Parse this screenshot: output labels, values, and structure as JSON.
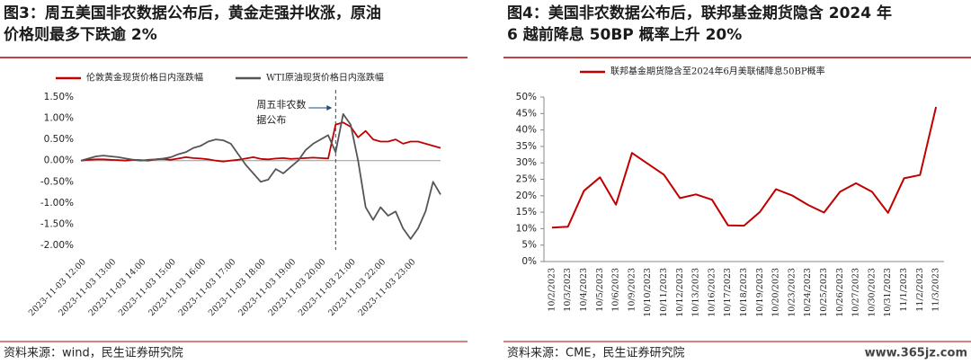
{
  "chart_data": [
    {
      "type": "line",
      "title": [
        "图3：周五美国非农数据公布后，黄金走强并收涨，原油",
        "价格则最多下跌逾 2%"
      ],
      "source": "资料来源：wind，民生证券研究院",
      "categories": [
        "2023-11-03 12:00",
        null,
        null,
        null,
        "2023-11-03 13:00",
        null,
        null,
        null,
        "2023-11-03 14:00",
        null,
        null,
        null,
        "2023-11-03 15:00",
        null,
        null,
        null,
        "2023-11-03 16:00",
        null,
        null,
        null,
        "2023-11-03 17:00",
        null,
        null,
        null,
        "2023-11-03 18:00",
        null,
        null,
        null,
        "2023-11-03 19:00",
        null,
        null,
        null,
        "2023-11-03 20:00",
        null,
        null,
        null,
        "2023-11-03 21:00",
        null,
        null,
        null,
        "2023-11-03 22:00",
        null,
        null,
        null,
        "2023-11-03 23:00",
        null,
        null,
        null,
        null
      ],
      "series": [
        {
          "name": "伦敦黄金现货价格日内涨跌幅",
          "color": "#c00000",
          "values": [
            0,
            0.02,
            0.03,
            0.03,
            0.02,
            0.01,
            0.0,
            0.02,
            0.01,
            0.0,
            0.03,
            0.04,
            0.02,
            0.05,
            0.08,
            0.06,
            0.05,
            0.03,
            0.0,
            -0.02,
            0.0,
            0.02,
            0.05,
            0.08,
            0.04,
            0.03,
            0.05,
            0.06,
            0.04,
            0.05,
            0.06,
            0.07,
            0.06,
            0.05,
            0.85,
            0.9,
            0.8,
            0.55,
            0.7,
            0.5,
            0.45,
            0.45,
            0.5,
            0.4,
            0.45,
            0.45,
            0.4,
            0.35,
            0.3
          ]
        },
        {
          "name": "WTI原油现货价格日内涨跌幅",
          "color": "#555555",
          "values": [
            0,
            0.05,
            0.1,
            0.12,
            0.1,
            0.08,
            0.05,
            0.02,
            0.0,
            0.02,
            0.03,
            0.05,
            0.08,
            0.15,
            0.2,
            0.3,
            0.35,
            0.45,
            0.5,
            0.48,
            0.4,
            0.15,
            -0.1,
            -0.3,
            -0.5,
            -0.45,
            -0.2,
            -0.3,
            -0.15,
            0.0,
            0.25,
            0.4,
            0.5,
            0.6,
            0.2,
            1.1,
            0.85,
            0.0,
            -1.1,
            -1.4,
            -1.1,
            -1.3,
            -1.2,
            -1.6,
            -1.85,
            -1.6,
            -1.2,
            -0.5,
            -0.8
          ]
        }
      ],
      "annotation": {
        "lines": [
          "周五非农数",
          "据公布"
        ],
        "x": 34
      },
      "ylim": [
        -2,
        1.5
      ],
      "yticks": [
        {
          "value": -2,
          "label": "-2.00%"
        },
        {
          "value": -1.5,
          "label": "-1.50%"
        },
        {
          "value": -1,
          "label": "-1.00%"
        },
        {
          "value": -0.5,
          "label": "-0.50%"
        },
        {
          "value": 0,
          "label": "0.00%"
        },
        {
          "value": 0.5,
          "label": "0.50%"
        },
        {
          "value": 1,
          "label": "1.00%"
        },
        {
          "value": 1.5,
          "label": "1.50%"
        }
      ],
      "legend": "top",
      "grid": false
    },
    {
      "type": "line",
      "title": [
        "图4：美国非农数据公布后，联邦基金期货隐含 2024 年",
        "6 越前降息 50BP 概率上升 20%"
      ],
      "source": "资料来源：CME，民生证券研究院",
      "watermark": "www.365jz.com",
      "categories": [
        "10/2/2023",
        "10/3/2023",
        "10/4/2023",
        "10/5/2023",
        "10/6/2023",
        "10/9/2023",
        "10/10/2023",
        "10/11/2023",
        "10/12/2023",
        "10/13/2023",
        "10/16/2023",
        "10/17/2023",
        "10/18/2023",
        "10/19/2023",
        "10/20/2023",
        "10/23/2023",
        "10/24/2023",
        "10/25/2023",
        "10/26/2023",
        "10/27/2023",
        "10/30/2023",
        "10/31/2023",
        "11/1/2023",
        "11/2/2023",
        "11/3/2023"
      ],
      "series": [
        {
          "name": "联邦基金期货隐含至2024年6月美联储降息50BP概率",
          "color": "#c00000",
          "values": [
            10.3,
            10.6,
            21.5,
            25.6,
            17.3,
            33,
            29.7,
            26.4,
            19.3,
            20.4,
            18.8,
            11,
            10.9,
            15.1,
            22,
            20.1,
            17.2,
            14.9,
            21.2,
            23.8,
            21.2,
            14.8,
            25.3,
            26.3,
            47
          ]
        }
      ],
      "ylim": [
        0,
        50
      ],
      "yticks": [
        {
          "value": 0,
          "label": "0%"
        },
        {
          "value": 5,
          "label": "5%"
        },
        {
          "value": 10,
          "label": "10%"
        },
        {
          "value": 15,
          "label": "15%"
        },
        {
          "value": 20,
          "label": "20%"
        },
        {
          "value": 25,
          "label": "25%"
        },
        {
          "value": 30,
          "label": "30%"
        },
        {
          "value": 35,
          "label": "35%"
        },
        {
          "value": 40,
          "label": "40%"
        },
        {
          "value": 45,
          "label": "45%"
        },
        {
          "value": 50,
          "label": "50%"
        }
      ],
      "legend": "top",
      "grid": false
    }
  ]
}
